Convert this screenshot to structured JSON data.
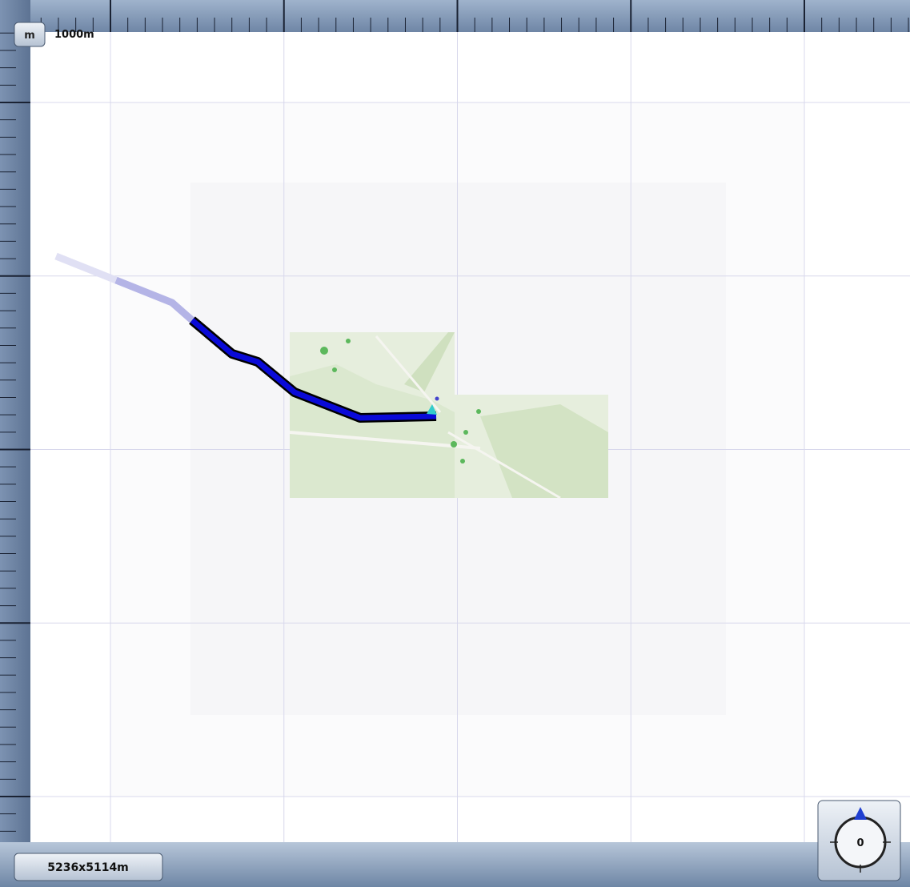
{
  "ui": {
    "scale_button": "m",
    "scale_label": "1000m",
    "map_size": "5236x5114m",
    "compass_heading": "0"
  }
}
